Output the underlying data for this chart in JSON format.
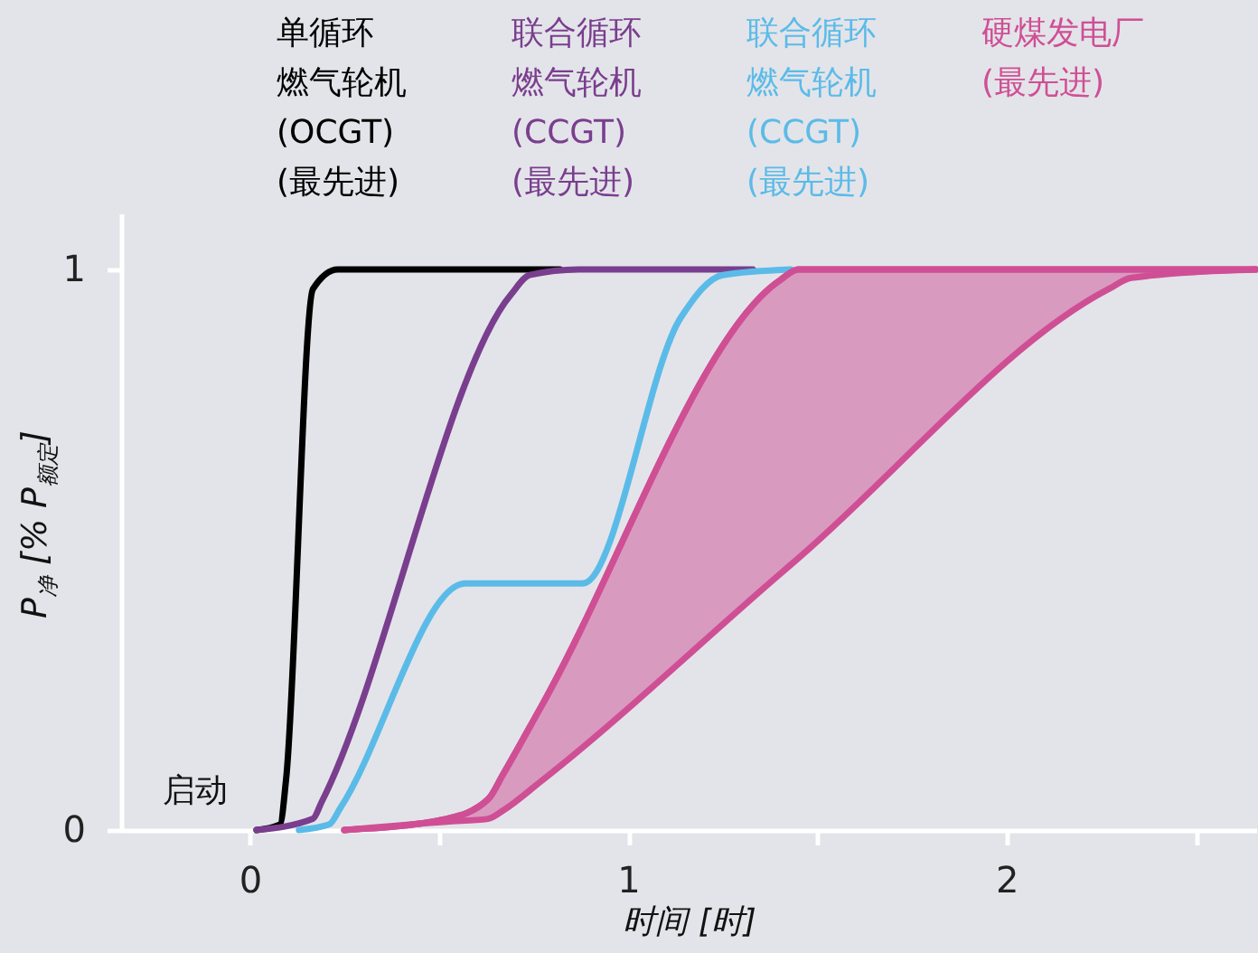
{
  "chart_data": {
    "type": "line",
    "xlabel": "时间 [时]",
    "ylabel": "P$_{净}$ [% P$_{额定}$]",
    "xlim": [
      -0.34,
      2.66
    ],
    "ylim": [
      0,
      1.1
    ],
    "xticks": [
      0,
      {
        "value": 0.5,
        "label": null
      },
      1,
      {
        "value": 1.5,
        "label": null
      },
      2,
      {
        "value": 2.5,
        "label": null
      }
    ],
    "yticks": [
      0,
      1
    ],
    "grid": false,
    "legend": "top",
    "annotations": [
      "启动"
    ],
    "series": [
      {
        "name": "单循环燃气轮机\n(OCGT)\n(最先进)",
        "color": "#000000",
        "x": [
          0.018,
          0.08,
          0.096,
          0.167,
          0.233,
          0.82
        ],
        "values": [
          0,
          0.01,
          0.09,
          0.965,
          1.0,
          1.0
        ]
      },
      {
        "name": "联合循环燃气轮机\n(CCGT)\n(最先进)",
        "color": "#7a3e8e",
        "x": [
          0.018,
          0.167,
          0.19,
          0.69,
          0.74,
          0.87,
          1.33
        ],
        "values": [
          0,
          0.02,
          0.05,
          0.955,
          0.99,
          1.0,
          1.0
        ]
      },
      {
        "name": "联合循环燃气轮机\n(CCGT)\n(最先进)",
        "color": "#5bbbe8",
        "x": [
          0.13,
          0.21,
          0.24,
          0.57,
          0.88,
          1.14,
          1.25,
          1.43
        ],
        "values": [
          0,
          0.01,
          0.04,
          0.44,
          0.44,
          0.915,
          0.99,
          1.0
        ]
      },
      {
        "name": "硬煤发电厂\n(最先进)",
        "color": "#cf4f95",
        "x": [
          0.25,
          0.52,
          0.63,
          0.67,
          0.77,
          1.4,
          1.45,
          2.27,
          2.33,
          2.66
        ],
        "values": [
          0,
          0.02,
          0.055,
          0.1,
          0.22,
          0.98,
          1.0,
          1.0,
          1.0,
          1.0
        ],
        "lower": [
          0,
          0.015,
          0.02,
          0.035,
          0.087,
          0.456,
          0.485,
          0.965,
          0.985,
          1.0
        ],
        "upper": [
          0,
          0.02,
          0.055,
          0.1,
          0.22,
          0.98,
          1.0,
          1.0,
          1.0,
          1.0
        ]
      }
    ]
  }
}
